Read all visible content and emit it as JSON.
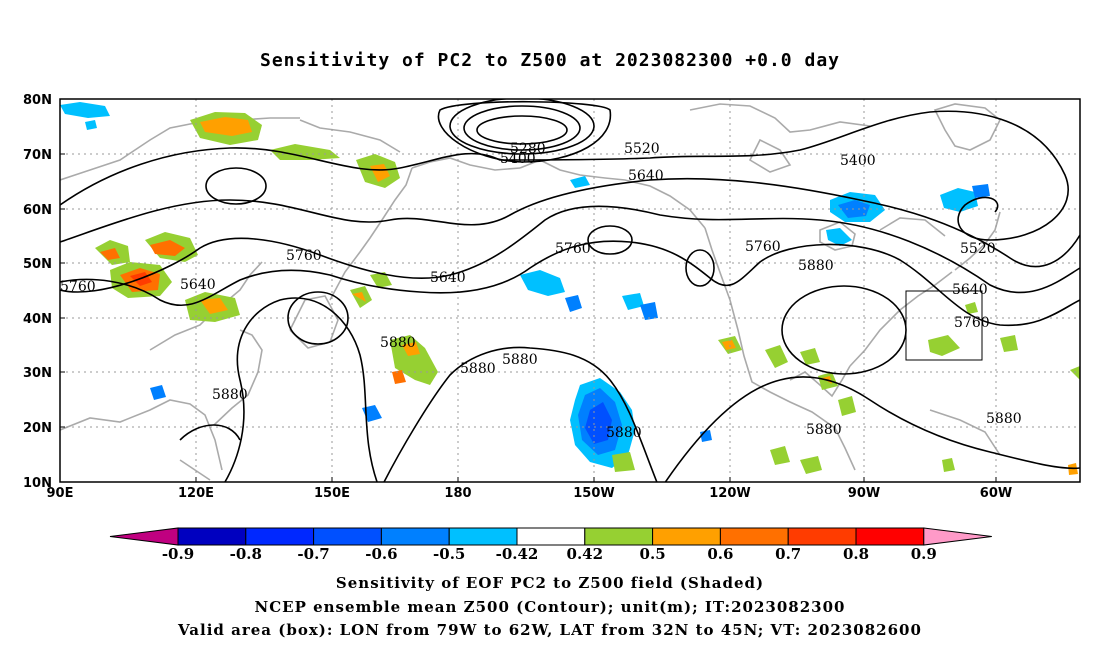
{
  "title": "Sensitivity of PC2 to Z500 at 2023082300 +0.0 day",
  "map": {
    "lat_labels": [
      "80N",
      "70N",
      "60N",
      "50N",
      "40N",
      "30N",
      "20N",
      "10N"
    ],
    "lon_labels": [
      "90E",
      "120E",
      "150E",
      "180",
      "150W",
      "120W",
      "90W",
      "60W"
    ],
    "contour_labels": [
      {
        "text": "5280"
      },
      {
        "text": "5400"
      },
      {
        "text": "5520"
      },
      {
        "text": "5400"
      },
      {
        "text": "5640"
      },
      {
        "text": "5520"
      },
      {
        "text": "5760"
      },
      {
        "text": "5640"
      },
      {
        "text": "5760"
      },
      {
        "text": "5760"
      },
      {
        "text": "5640"
      },
      {
        "text": "5760"
      },
      {
        "text": "5880"
      },
      {
        "text": "5640"
      },
      {
        "text": "5760"
      },
      {
        "text": "5880"
      },
      {
        "text": "5880"
      },
      {
        "text": "5880"
      },
      {
        "text": "5880"
      },
      {
        "text": "5880"
      },
      {
        "text": "5880"
      },
      {
        "text": "5880"
      }
    ],
    "valid_box": {
      "lon_min": -79,
      "lon_max": -62,
      "lat_min": 32,
      "lat_max": 45
    }
  },
  "colorbar": {
    "labels": [
      "-0.9",
      "-0.8",
      "-0.7",
      "-0.6",
      "-0.5",
      "-0.42",
      "0.42",
      "0.5",
      "0.6",
      "0.7",
      "0.8",
      "0.9"
    ],
    "colors": [
      "#c00080",
      "#0000c0",
      "#0028ff",
      "#0050ff",
      "#0080ff",
      "#00c0ff",
      "#ffffff",
      "#96d032",
      "#ffa000",
      "#ff7000",
      "#ff3c00",
      "#ff0000",
      "#ff9ac8"
    ]
  },
  "captions": {
    "line1": "Sensitivity of EOF PC2 to Z500 field (Shaded)",
    "line2": "NCEP ensemble mean Z500 (Contour); unit(m); IT:2023082300",
    "line3": "Valid area (box): LON from 79W to 62W, LAT from 32N to 45N; VT: 2023082600"
  }
}
